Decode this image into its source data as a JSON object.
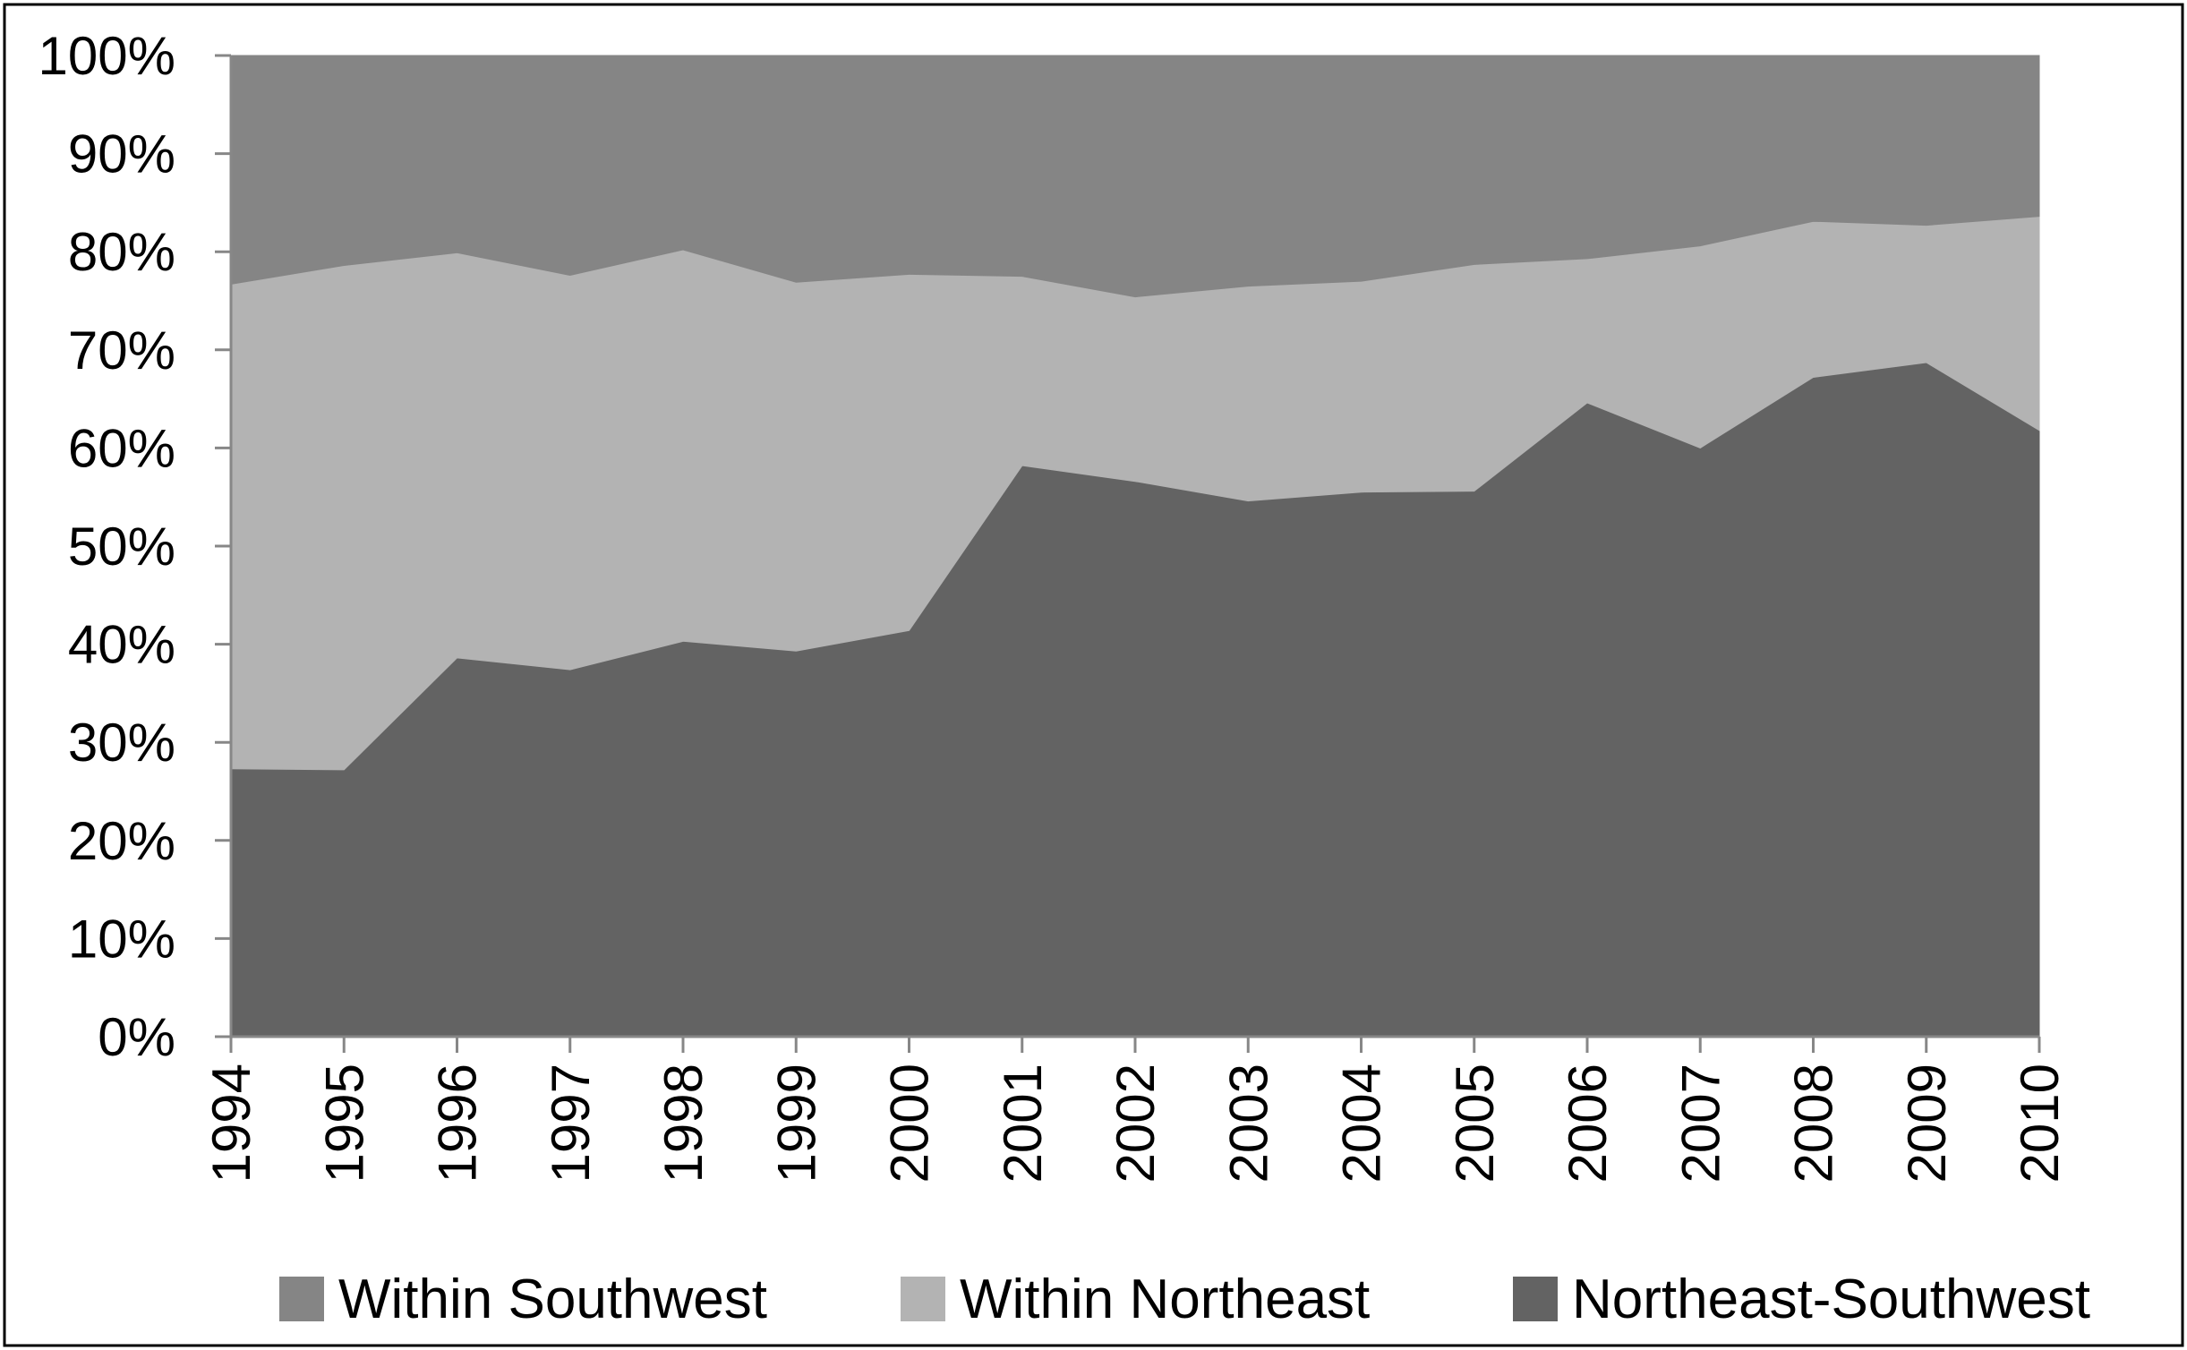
{
  "chart_data": {
    "type": "area",
    "stacked": true,
    "percent": true,
    "title": "",
    "xlabel": "",
    "ylabel": "",
    "x": [
      "1994",
      "1995",
      "1996",
      "1997",
      "1998",
      "1999",
      "2000",
      "2001",
      "2002",
      "2003",
      "2004",
      "2005",
      "2006",
      "2007",
      "2008",
      "2009",
      "2010"
    ],
    "y_ticks": [
      "0%",
      "10%",
      "20%",
      "30%",
      "40%",
      "50%",
      "60%",
      "70%",
      "80%",
      "90%",
      "100%"
    ],
    "ylim": [
      0,
      100
    ],
    "grid": false,
    "legend_position": "bottom",
    "series": [
      {
        "name": "Northeast-Southwest",
        "color": "#636363",
        "values": [
          27.3,
          27.2,
          38.6,
          37.4,
          40.3,
          39.3,
          41.4,
          58.2,
          56.6,
          54.6,
          55.5,
          55.6,
          64.6,
          60.0,
          67.2,
          68.7,
          61.8
        ]
      },
      {
        "name": "Within Northeast",
        "color": "#b3b3b3",
        "values": [
          49.4,
          51.4,
          41.3,
          40.2,
          39.9,
          37.6,
          36.3,
          19.3,
          18.8,
          21.9,
          21.5,
          23.1,
          14.7,
          20.6,
          15.9,
          14.0,
          21.8
        ]
      },
      {
        "name": "Within Southwest",
        "color": "#858585",
        "values": [
          23.3,
          21.4,
          20.1,
          22.4,
          19.8,
          23.1,
          22.3,
          22.5,
          24.6,
          23.5,
          23.0,
          21.3,
          20.7,
          19.4,
          16.9,
          17.3,
          16.4
        ]
      }
    ],
    "legend_order": [
      "Within Southwest",
      "Within Northeast",
      "Northeast-Southwest"
    ]
  }
}
